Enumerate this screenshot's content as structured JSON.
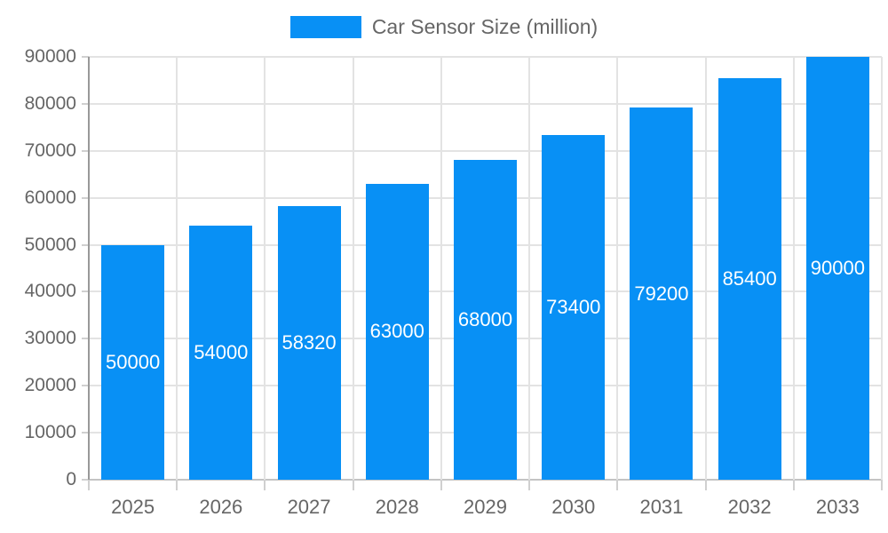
{
  "legend": {
    "label": "Car Sensor Size (million)"
  },
  "chart_data": {
    "type": "bar",
    "title": "Car Sensor Size (million)",
    "series_name": "Car Sensor Size (million)",
    "categories": [
      "2025",
      "2026",
      "2027",
      "2028",
      "2029",
      "2030",
      "2031",
      "2032",
      "2033"
    ],
    "values": [
      50000,
      54000,
      58320,
      63000,
      68000,
      73400,
      79200,
      85400,
      90000
    ],
    "bar_labels": [
      "50000",
      "54000",
      "58320",
      "63000",
      "68000",
      "73400",
      "79200",
      "85400",
      "90000"
    ],
    "xlabel": "",
    "ylabel": "",
    "ylim": [
      0,
      90000
    ],
    "yticks": [
      0,
      10000,
      20000,
      30000,
      40000,
      50000,
      60000,
      70000,
      80000,
      90000
    ],
    "grid": true,
    "legend_position": "top",
    "colors": {
      "bar": "#0890f5",
      "bar_label": "#ffffff",
      "axis_text": "#666666",
      "gridline": "#e3e3e3",
      "axis_line_left": "#999999",
      "axis_line_bottom": "#c4c4c4",
      "tick": "#d0d0d0"
    }
  }
}
